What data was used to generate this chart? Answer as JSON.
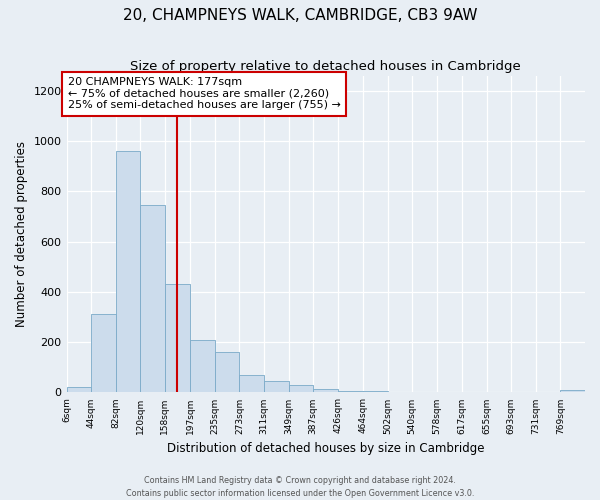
{
  "title": "20, CHAMPNEYS WALK, CAMBRIDGE, CB3 9AW",
  "subtitle": "Size of property relative to detached houses in Cambridge",
  "xlabel": "Distribution of detached houses by size in Cambridge",
  "ylabel": "Number of detached properties",
  "bin_labels": [
    "6sqm",
    "44sqm",
    "82sqm",
    "120sqm",
    "158sqm",
    "197sqm",
    "235sqm",
    "273sqm",
    "311sqm",
    "349sqm",
    "387sqm",
    "426sqm",
    "464sqm",
    "502sqm",
    "540sqm",
    "578sqm",
    "617sqm",
    "655sqm",
    "693sqm",
    "731sqm",
    "769sqm"
  ],
  "bin_values": [
    20,
    310,
    960,
    745,
    430,
    210,
    160,
    70,
    45,
    30,
    15,
    5,
    5,
    3,
    2,
    2,
    1,
    1,
    1,
    1,
    10
  ],
  "bin_edges": [
    6,
    44,
    82,
    120,
    158,
    197,
    235,
    273,
    311,
    349,
    387,
    426,
    464,
    502,
    540,
    578,
    617,
    655,
    693,
    731,
    769,
    807
  ],
  "bar_color": "#ccdcec",
  "bar_edge_color": "#7aaac8",
  "vline_x": 177,
  "vline_color": "#cc0000",
  "annotation_text": "20 CHAMPNEYS WALK: 177sqm\n← 75% of detached houses are smaller (2,260)\n25% of semi-detached houses are larger (755) →",
  "annotation_box_color": "#ffffff",
  "annotation_box_edge": "#cc0000",
  "ylim": [
    0,
    1260
  ],
  "yticks": [
    0,
    200,
    400,
    600,
    800,
    1000,
    1200
  ],
  "footnote1": "Contains HM Land Registry data © Crown copyright and database right 2024.",
  "footnote2": "Contains public sector information licensed under the Open Government Licence v3.0.",
  "background_color": "#e8eef4",
  "plot_bg_color": "#e8eef4",
  "title_fontsize": 11,
  "subtitle_fontsize": 9.5
}
